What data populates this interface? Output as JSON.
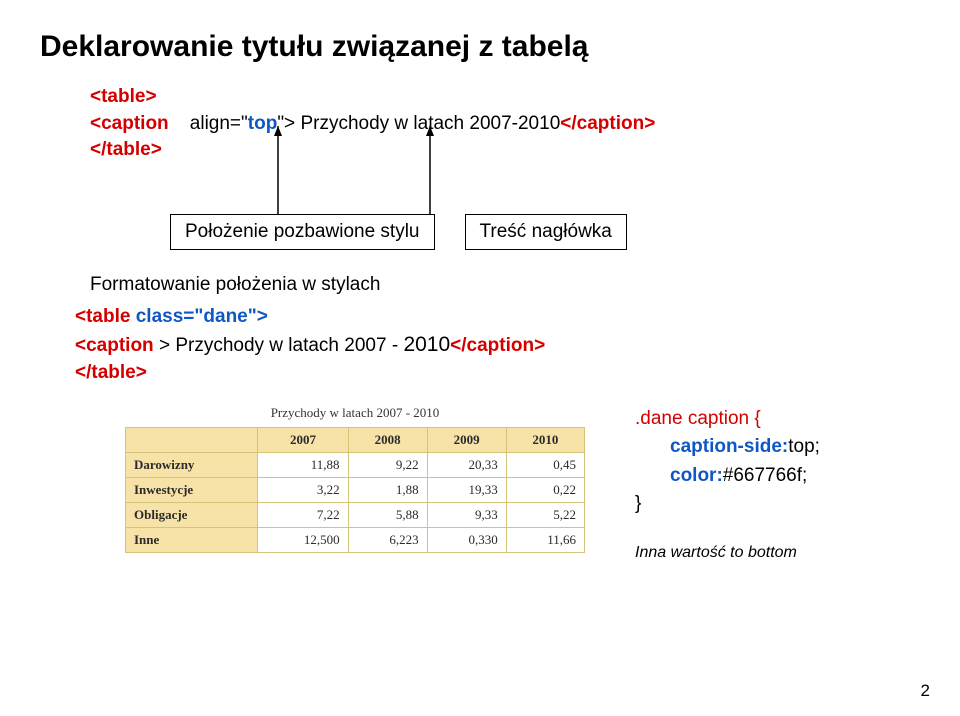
{
  "title": "Deklarowanie tytułu związanej z tabelą",
  "code1": {
    "line1a": "<table>",
    "line2_tag": "<caption",
    "line2_attr": "align=\"",
    "line2_attrval": "top",
    "line2_attr2": "\"> ",
    "line2_text": "Przychody w latach 2007-2010",
    "line2_close": "</caption>",
    "line3": "</table>"
  },
  "box1": "Położenie pozbawione stylu",
  "box2": "Treść nagłówka",
  "section2_label": "Formatowanie położenia w stylach",
  "code2": {
    "line1a": "<table ",
    "line1b": "class=\"",
    "line1c": "dane",
    "line1d": "\">",
    "line2a": "<caption ",
    "line2b": "> ",
    "line2c": "Przychody w latach 2007 - ",
    "line2d": "2010",
    "line2e": "</caption>",
    "line3": "</table>"
  },
  "table": {
    "caption": "Przychody w latach 2007 - 2010",
    "headers": [
      "",
      "2007",
      "2008",
      "2009",
      "2010"
    ],
    "rows": [
      [
        "Darowizny",
        "11,88",
        "9,22",
        "20,33",
        "0,45"
      ],
      [
        "Inwestycje",
        "3,22",
        "1,88",
        "19,33",
        "0,22"
      ],
      [
        "Obligacje",
        "7,22",
        "5,88",
        "9,33",
        "5,22"
      ],
      [
        "Inne",
        "12,500",
        "6,223",
        "0,330",
        "11,66"
      ]
    ]
  },
  "css": {
    "sel": ".dane caption {",
    "prop1": "caption-side:",
    "val1": "top;",
    "prop2": "color:",
    "val2": "#667766f;",
    "close": "}"
  },
  "note": "Inna wartość to bottom",
  "page": "2"
}
